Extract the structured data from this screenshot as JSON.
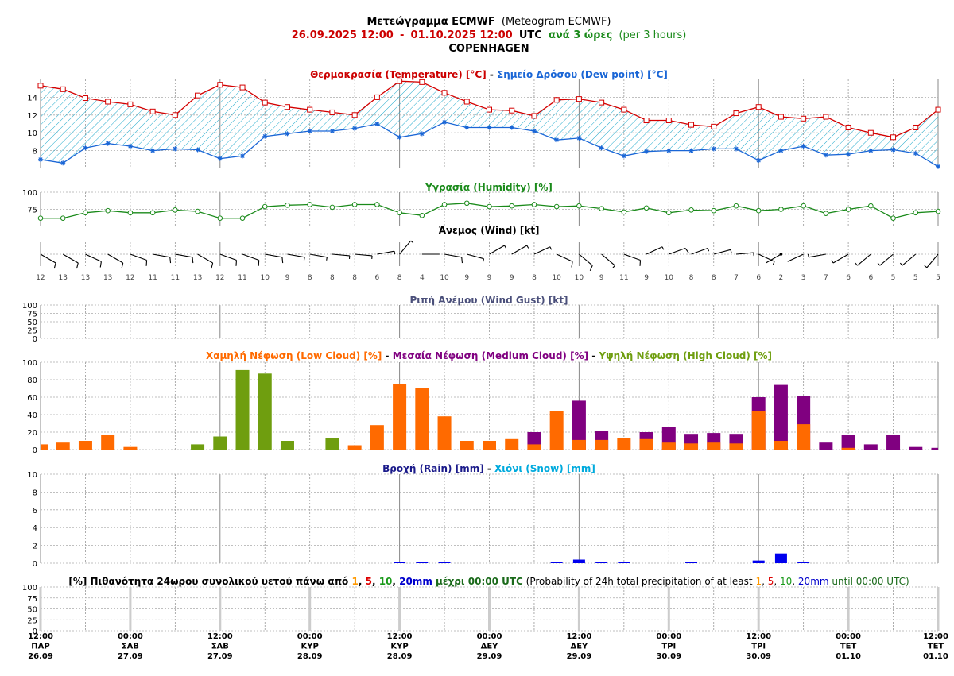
{
  "header": {
    "line1_greek": "Μετεώγραμμα ECMWF",
    "line1_english": "(Meteogram ECMWF)",
    "range_start": "26.09.2025 12:00",
    "range_dash": "-",
    "range_end": "01.10.2025 12:00",
    "range_utc": "UTC",
    "range_greek": "ανά 3 ώρες",
    "range_english": "(per 3 hours)",
    "location": "COPENHAGEN"
  },
  "colors": {
    "temperature": "#d40000",
    "dewpoint": "#1a66d6",
    "humidity": "#1a8a1a",
    "low_cloud": "#ff6a00",
    "medium_cloud": "#800080",
    "high_cloud": "#6f9e0f",
    "rain": "#0000ee",
    "snow": "#00aadd",
    "gust_title": "#4a4f7a",
    "grid": "#999999",
    "hatch": "#22aacc"
  },
  "chart_data": [
    {
      "id": "temperature",
      "type": "line",
      "title_parts": [
        {
          "text": "Θερμοκρασία (Temperature) [°C]",
          "color": "#cc0000"
        },
        {
          "text": " - ",
          "color": "#000000"
        },
        {
          "text": "Σημείο Δρόσου (Dew point) [°C]",
          "color": "#1a66d6"
        }
      ],
      "y_ticks": [
        8,
        10,
        12,
        14
      ],
      "ylim": [
        6,
        16
      ],
      "series": [
        {
          "key": "temperature",
          "values": [
            15.3,
            14.9,
            13.9,
            13.5,
            13.2,
            12.4,
            12.0,
            14.2,
            15.4,
            15.1,
            13.4,
            12.9,
            12.6,
            12.3,
            12.0,
            14.0,
            15.8,
            15.7,
            14.5,
            13.5,
            12.6,
            12.5,
            11.9,
            13.7,
            13.8,
            13.4,
            12.6,
            11.4,
            11.4,
            10.9,
            10.7,
            12.2,
            12.9,
            11.8,
            11.6,
            11.8,
            10.6,
            10.0,
            9.5,
            10.6,
            12.6
          ]
        },
        {
          "key": "dewpoint",
          "values": [
            7.0,
            6.6,
            8.3,
            8.8,
            8.5,
            8.0,
            8.2,
            8.1,
            7.1,
            7.4,
            9.6,
            9.9,
            10.2,
            10.2,
            10.5,
            11.0,
            9.5,
            9.9,
            11.2,
            10.6,
            10.6,
            10.6,
            10.2,
            9.2,
            9.4,
            8.3,
            7.4,
            7.9,
            8.0,
            8.0,
            8.2,
            8.2,
            6.9,
            8.0,
            8.5,
            7.5,
            7.6,
            8.0,
            8.1,
            7.7,
            6.2
          ]
        }
      ]
    },
    {
      "id": "humidity",
      "type": "line",
      "title_parts": [
        {
          "text": "Υγρασία (Humidity) [%]",
          "color": "#1a8a1a"
        }
      ],
      "y_ticks": [
        75,
        100
      ],
      "ylim": [
        50,
        100
      ],
      "series": [
        {
          "key": "humidity",
          "values": [
            62,
            62,
            70,
            73,
            70,
            70,
            74,
            72,
            62,
            62,
            79,
            81,
            82,
            78,
            82,
            82,
            70,
            66,
            82,
            84,
            79,
            80,
            82,
            79,
            80,
            76,
            71,
            77,
            70,
            74,
            73,
            80,
            73,
            75,
            80,
            69,
            75,
            80,
            62,
            70,
            72
          ]
        }
      ]
    },
    {
      "id": "wind",
      "type": "wind_barbs",
      "title_parts": [
        {
          "text": "Άνεμος (Wind) [kt]",
          "color": "#000000"
        }
      ],
      "speed_labels": [
        "12",
        "13",
        "13",
        "13",
        "12",
        "11",
        "11",
        "13",
        "12",
        "11",
        "10",
        "9",
        "8",
        "8",
        "8",
        "6",
        "8",
        "4",
        "10",
        "9",
        "9",
        "9",
        "8",
        "10",
        "10",
        "9",
        "11",
        "9",
        "10",
        "8",
        "8",
        "7",
        "6",
        "2",
        "3",
        "7",
        "6",
        "6",
        "5",
        "5",
        "5"
      ],
      "direction_deg": [
        120,
        120,
        115,
        120,
        110,
        100,
        100,
        120,
        110,
        110,
        100,
        100,
        100,
        95,
        95,
        80,
        40,
        90,
        100,
        105,
        60,
        60,
        65,
        115,
        130,
        130,
        110,
        65,
        70,
        70,
        75,
        85,
        115,
        240,
        245,
        260,
        240,
        230,
        230,
        230,
        220
      ]
    },
    {
      "id": "gust",
      "type": "bar",
      "title_parts": [
        {
          "text": "Ριπή Ανέμου (Wind Gust) [kt]",
          "color": "#4a4f7a"
        }
      ],
      "y_ticks": [
        0,
        25,
        50,
        75,
        100
      ],
      "ylim": [
        0,
        100
      ],
      "series": []
    },
    {
      "id": "cloud",
      "type": "bar",
      "title_parts": [
        {
          "text": "Χαμηλή Νέφωση (Low Cloud) [%]",
          "color": "#ff6a00"
        },
        {
          "text": " - ",
          "color": "#000000"
        },
        {
          "text": "Μεσαία Νέφωση (Medium Cloud) [%]",
          "color": "#800080"
        },
        {
          "text": " - ",
          "color": "#000000"
        },
        {
          "text": "Υψηλή Νέφωση (High Cloud) [%]",
          "color": "#6f9e0f"
        }
      ],
      "y_ticks": [
        0,
        20,
        40,
        60,
        80,
        100
      ],
      "ylim": [
        0,
        100
      ],
      "series": [
        {
          "key": "high_cloud",
          "values": [
            0,
            0,
            0,
            0,
            0,
            0,
            0,
            6,
            15,
            91,
            87,
            10,
            0,
            13,
            0,
            0,
            0,
            0,
            0,
            0,
            0,
            0,
            0,
            0,
            0,
            0,
            0,
            0,
            0,
            0,
            0,
            0,
            0,
            0,
            0,
            0,
            0,
            0,
            0,
            0,
            0
          ]
        },
        {
          "key": "medium_cloud",
          "values": [
            0,
            0,
            0,
            0,
            0,
            0,
            0,
            0,
            0,
            0,
            0,
            0,
            0,
            0,
            0,
            0,
            0,
            0,
            0,
            0,
            0,
            0,
            20,
            0,
            56,
            21,
            0,
            20,
            26,
            18,
            19,
            18,
            60,
            74,
            61,
            8,
            17,
            6,
            17,
            3,
            2
          ]
        },
        {
          "key": "low_cloud",
          "values": [
            6,
            8,
            10,
            17,
            3,
            0,
            0,
            0,
            0,
            0,
            0,
            0,
            0,
            0,
            5,
            28,
            75,
            70,
            38,
            10,
            10,
            12,
            6,
            44,
            11,
            11,
            13,
            12,
            8,
            7,
            8,
            7,
            44,
            10,
            29,
            0,
            2,
            0,
            0,
            0,
            0
          ]
        }
      ]
    },
    {
      "id": "precip",
      "type": "bar",
      "title_parts": [
        {
          "text": "Βροχή (Rain) [mm]",
          "color": "#1a1a8a"
        },
        {
          "text": " - ",
          "color": "#000000"
        },
        {
          "text": "Χιόνι (Snow) [mm]",
          "color": "#00aadd"
        }
      ],
      "y_ticks": [
        0,
        2,
        4,
        6,
        8,
        10
      ],
      "ylim": [
        0,
        10
      ],
      "series": [
        {
          "key": "rain",
          "values": [
            0,
            0,
            0,
            0,
            0,
            0,
            0,
            0,
            0,
            0,
            0,
            0,
            0,
            0,
            0,
            0,
            0.1,
            0.1,
            0.1,
            0,
            0,
            0,
            0,
            0.1,
            0.4,
            0.1,
            0.1,
            0,
            0,
            0.1,
            0,
            0,
            0.3,
            1.1,
            0.1,
            0,
            0,
            0,
            0,
            0,
            0
          ]
        },
        {
          "key": "snow",
          "values": [
            0,
            0,
            0,
            0,
            0,
            0,
            0,
            0,
            0,
            0,
            0,
            0,
            0,
            0,
            0,
            0,
            0,
            0,
            0,
            0,
            0,
            0,
            0,
            0,
            0,
            0,
            0,
            0,
            0,
            0,
            0,
            0,
            0,
            0,
            0,
            0,
            0,
            0,
            0,
            0,
            0
          ]
        }
      ]
    },
    {
      "id": "probability",
      "type": "bar",
      "title_parts": [
        {
          "text": "[%] Πιθανότητα 24ωρου συνολικού υετού πάνω από ",
          "color": "#000000",
          "bold": true
        },
        {
          "text": "1",
          "color": "#ff9900",
          "bold": true
        },
        {
          "text": ", ",
          "color": "#000000",
          "bold": true
        },
        {
          "text": "5",
          "color": "#dd0000",
          "bold": true
        },
        {
          "text": ", ",
          "color": "#000000",
          "bold": true
        },
        {
          "text": "10",
          "color": "#1a9a1a",
          "bold": true
        },
        {
          "text": ", ",
          "color": "#000000",
          "bold": true
        },
        {
          "text": "20mm",
          "color": "#0000cc",
          "bold": true
        },
        {
          "text": " μέχρι 00:00 UTC",
          "color": "#1a6a1a",
          "bold": true
        },
        {
          "text": " (Probability of 24h total precipitation of at least ",
          "color": "#000000",
          "bold": false
        },
        {
          "text": "1",
          "color": "#ff9900",
          "bold": false
        },
        {
          "text": ", ",
          "color": "#000000",
          "bold": false
        },
        {
          "text": "5",
          "color": "#dd0000",
          "bold": false
        },
        {
          "text": ", ",
          "color": "#000000",
          "bold": false
        },
        {
          "text": "10",
          "color": "#1a9a1a",
          "bold": false
        },
        {
          "text": ", ",
          "color": "#000000",
          "bold": false
        },
        {
          "text": "20mm",
          "color": "#0000cc",
          "bold": false
        },
        {
          "text": " until 00:00 UTC)",
          "color": "#1a6a1a",
          "bold": false
        }
      ],
      "y_ticks": [
        0,
        25,
        50,
        75,
        100
      ],
      "ylim": [
        0,
        100
      ],
      "series": []
    }
  ],
  "x_axis": {
    "ticks": [
      {
        "time": "12:00",
        "day": "ΠΑΡ",
        "date": "26.09"
      },
      {
        "time": "00:00",
        "day": "ΣΑΒ",
        "date": "27.09"
      },
      {
        "time": "12:00",
        "day": "ΣΑΒ",
        "date": "27.09"
      },
      {
        "time": "00:00",
        "day": "ΚΥΡ",
        "date": "28.09"
      },
      {
        "time": "12:00",
        "day": "ΚΥΡ",
        "date": "28.09"
      },
      {
        "time": "00:00",
        "day": "ΔΕΥ",
        "date": "29.09"
      },
      {
        "time": "12:00",
        "day": "ΔΕΥ",
        "date": "29.09"
      },
      {
        "time": "00:00",
        "day": "ΤΡΙ",
        "date": "30.09"
      },
      {
        "time": "12:00",
        "day": "ΤΡΙ",
        "date": "30.09"
      },
      {
        "time": "00:00",
        "day": "ΤΕΤ",
        "date": "01.10"
      },
      {
        "time": "12:00",
        "day": "ΤΕΤ",
        "date": "01.10"
      }
    ]
  }
}
